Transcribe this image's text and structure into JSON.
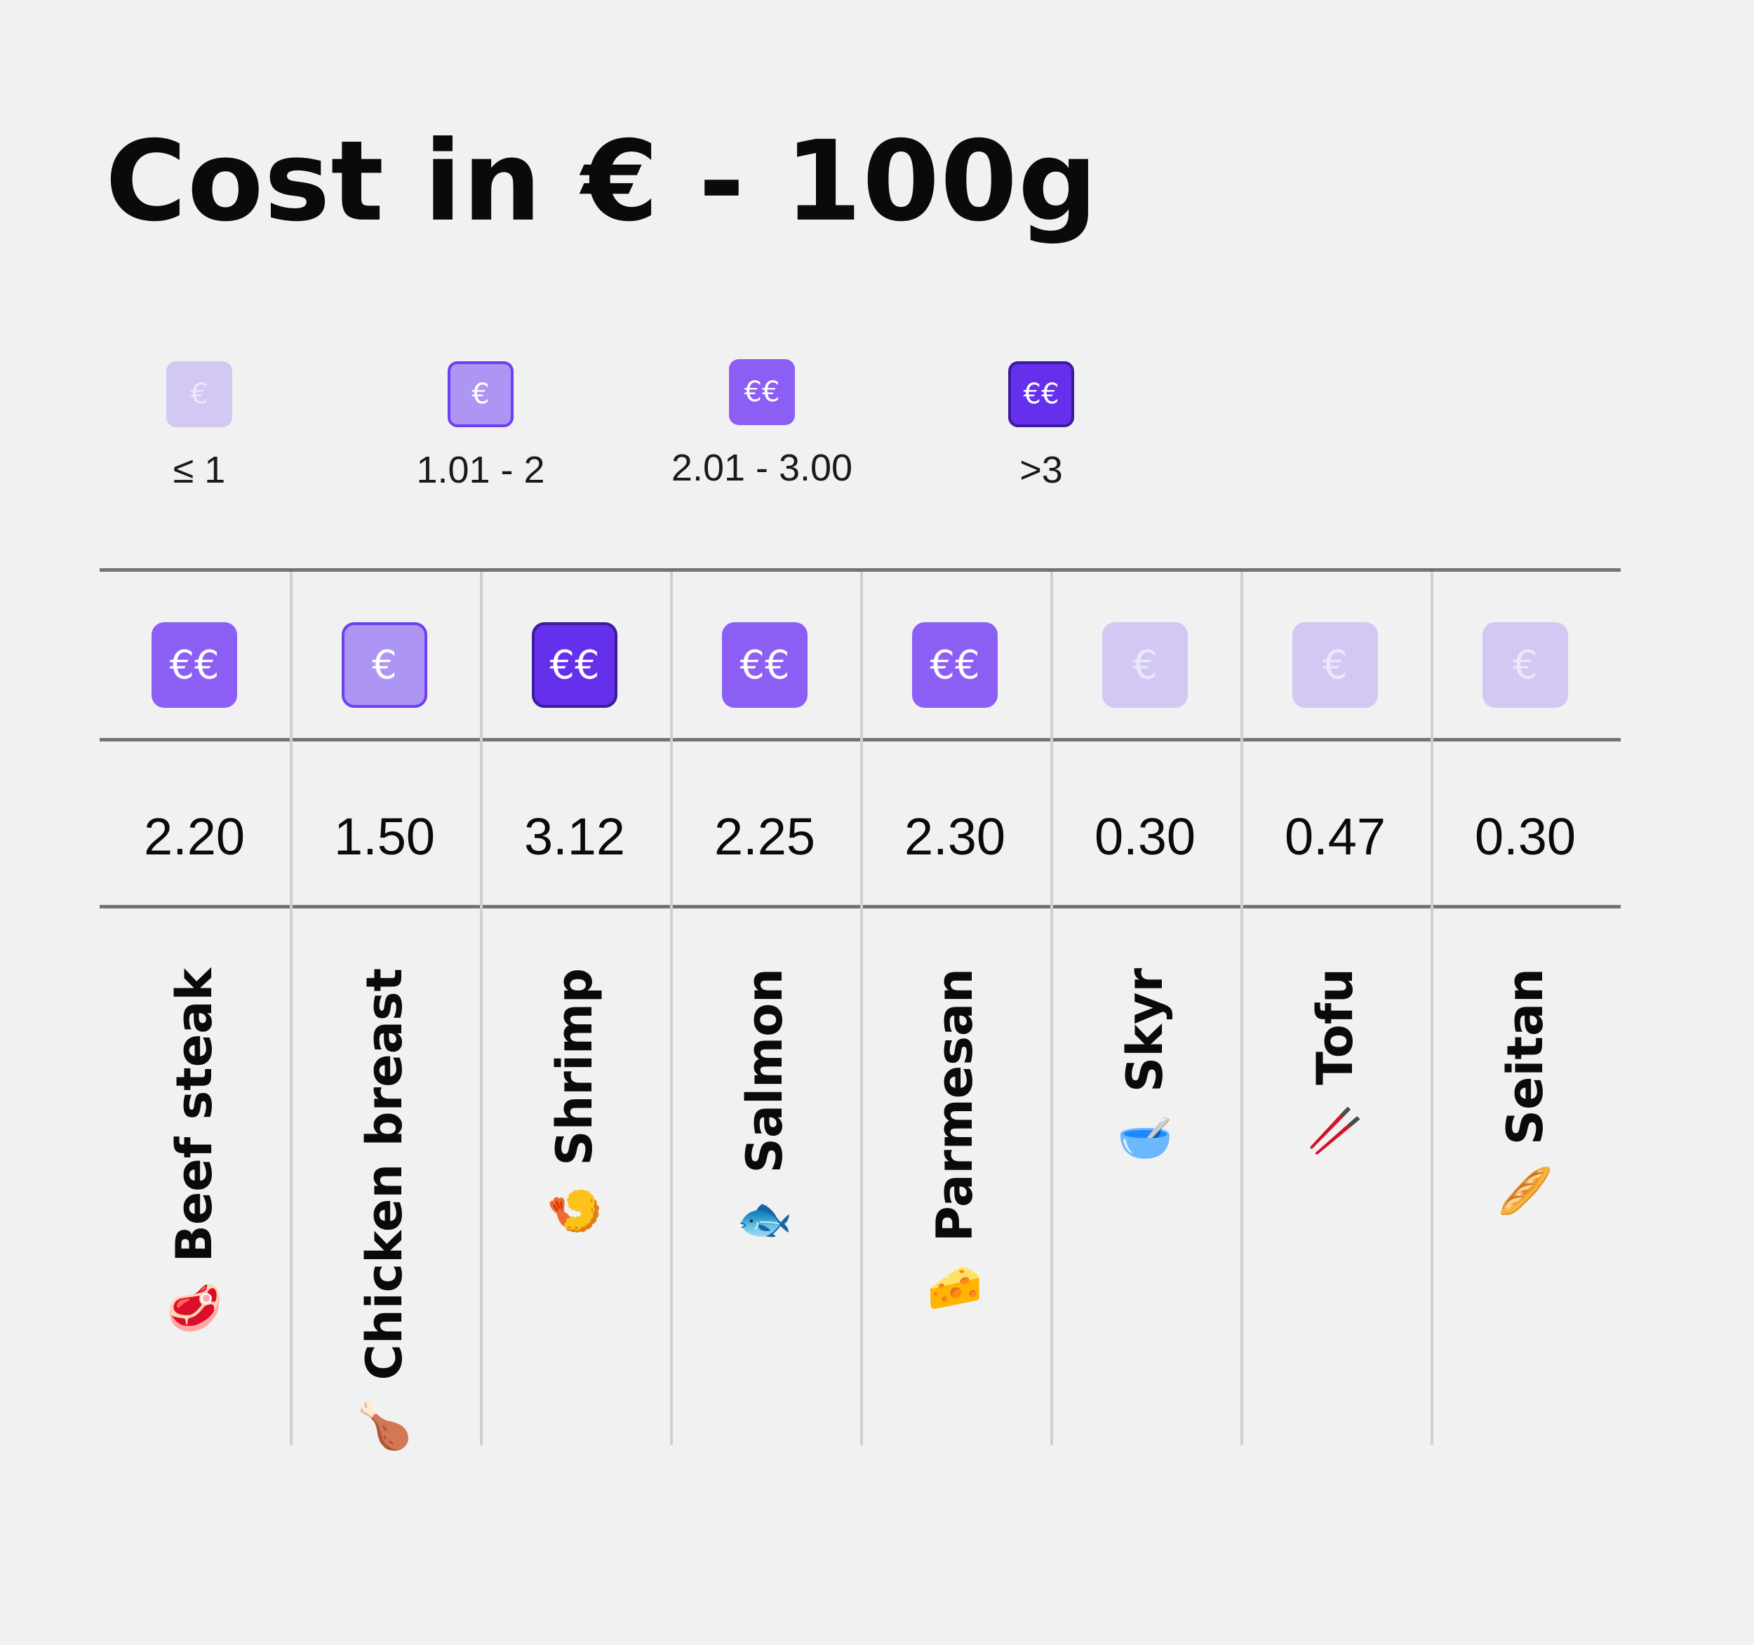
{
  "title": "Cost in € - 100g",
  "legend": [
    {
      "symbol": "€",
      "range": "≤ 1",
      "tier": "tier-1"
    },
    {
      "symbol": "€",
      "range": "1.01 - 2",
      "tier": "tier-2"
    },
    {
      "symbol": "€€",
      "range": "2.01 - 3.00",
      "tier": "tier-3"
    },
    {
      "symbol": "€€",
      "range": ">3",
      "tier": "tier-4"
    }
  ],
  "colors": {
    "tier-1": "#d2c8f3",
    "tier-2": "#ad96f3",
    "tier-3": "#8b5ff4",
    "tier-4": "#6530ec"
  },
  "items": [
    {
      "name": "Beef steak",
      "emoji": "🥩",
      "symbol": "€€",
      "value": "2.20",
      "tier": "tier-3"
    },
    {
      "name": "Chicken breast",
      "emoji": "🍗",
      "symbol": "€",
      "value": "1.50",
      "tier": "tier-2"
    },
    {
      "name": "Shrimp",
      "emoji": "🍤",
      "symbol": "€€",
      "value": "3.12",
      "tier": "tier-4"
    },
    {
      "name": "Salmon",
      "emoji": "🐟",
      "symbol": "€€",
      "value": "2.25",
      "tier": "tier-3"
    },
    {
      "name": "Parmesan",
      "emoji": "🧀",
      "symbol": "€€",
      "value": "2.30",
      "tier": "tier-3"
    },
    {
      "name": "Skyr",
      "emoji": "🥣",
      "symbol": "€",
      "value": "0.30",
      "tier": "tier-1"
    },
    {
      "name": "Tofu",
      "emoji": "🥢",
      "symbol": "€",
      "value": "0.47",
      "tier": "tier-1"
    },
    {
      "name": "Seitan",
      "emoji": "🥖",
      "symbol": "€",
      "value": "0.30",
      "tier": "tier-1"
    }
  ]
}
